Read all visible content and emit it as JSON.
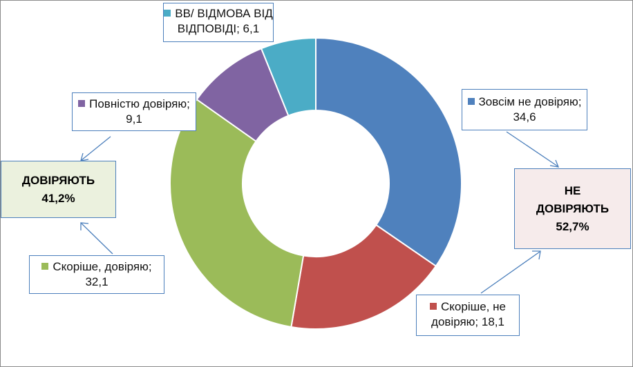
{
  "chart_data": {
    "type": "pie",
    "title": "",
    "slices": [
      {
        "label": "Зовсім не довіряю;",
        "value": 34.6,
        "value_label": "34,6",
        "color": "#4f81bd"
      },
      {
        "label": "Скоріше, не довіряю;",
        "value": 18.1,
        "value_label": "18,1",
        "color": "#c0504d"
      },
      {
        "label": "Скоріше, довіряю;",
        "value": 32.1,
        "value_label": "32,1",
        "color": "#9bbb59"
      },
      {
        "label": "Повністю довіряю;",
        "value": 9.1,
        "value_label": "9,1",
        "color": "#8064a2"
      },
      {
        "label": "ВВ/ ВІДМОВА ВІД ВІДПОВІДІ;",
        "value": 6.1,
        "value_label": "6,1",
        "color": "#4bacc6"
      }
    ],
    "annotations": {
      "trust": {
        "line1": "ДОВІРЯЮТЬ",
        "line2": "41,2%"
      },
      "distrust": {
        "line1": "НЕ",
        "line2": "ДОВІРЯЮТЬ",
        "line3": "52,7%"
      }
    }
  },
  "labels": {
    "s0": {
      "line1": "Зовсім не довіряю;",
      "line2": "34,6"
    },
    "s1": {
      "line1": "Скоріше, не",
      "line2": "довіряю; 18,1"
    },
    "s2": {
      "line1": "Скоріше, довіряю;",
      "line2": "32,1"
    },
    "s3": {
      "line1": "Повністю довіряю;",
      "line2": "9,1"
    },
    "s4": {
      "line1": "ВВ/ ВІДМОВА ВІД",
      "line2": "ВІДПОВІДІ; 6,1"
    }
  }
}
